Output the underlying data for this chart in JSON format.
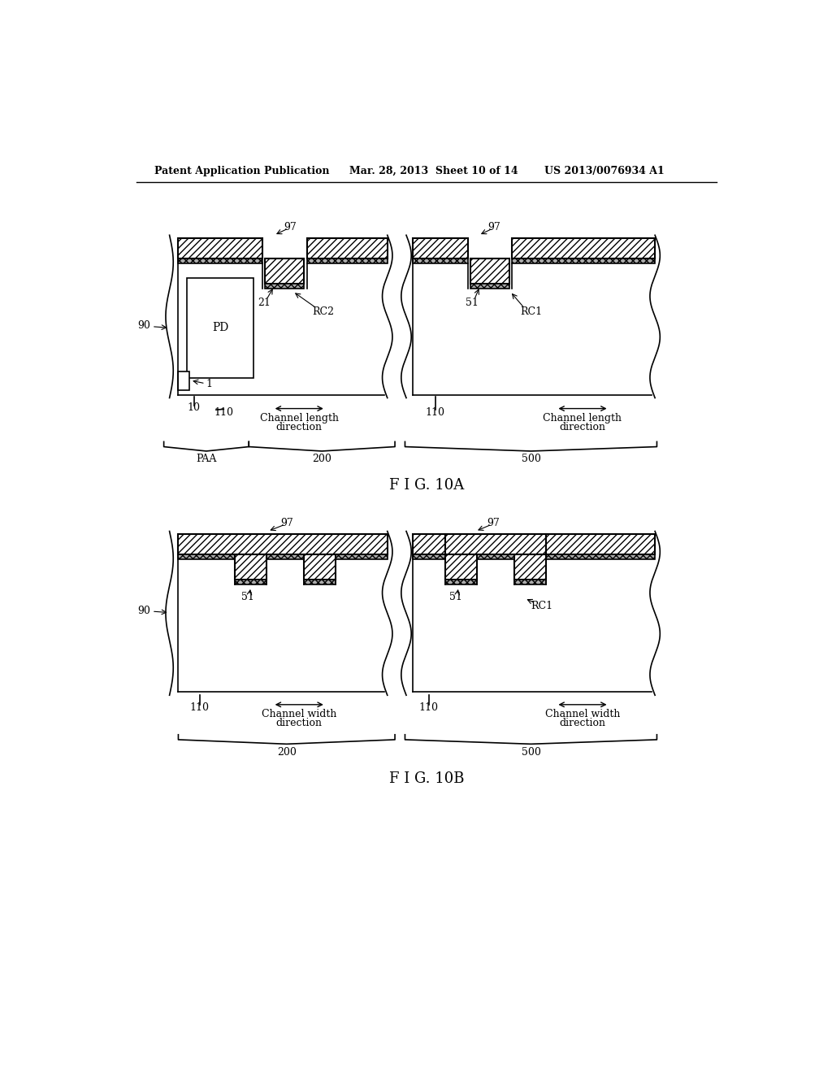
{
  "bg_color": "#ffffff",
  "header_left": "Patent Application Publication",
  "header_mid": "Mar. 28, 2013  Sheet 10 of 14",
  "header_right": "US 2013/0076934 A1",
  "fig10a_label": "F I G. 10A",
  "fig10b_label": "F I G. 10B",
  "hatch_pattern": "////",
  "hatch_dense": "xxxx"
}
